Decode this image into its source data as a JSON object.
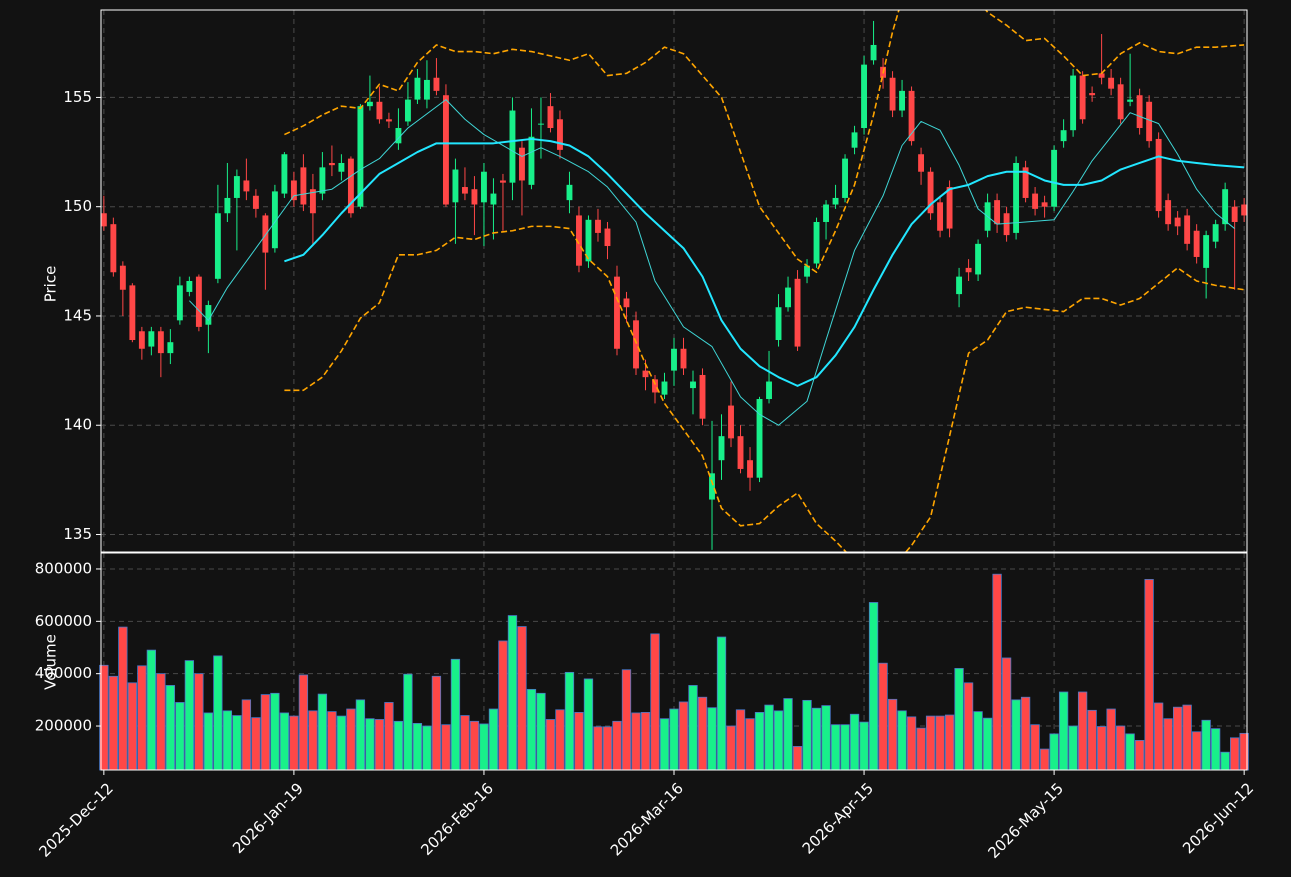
{
  "chart_data": {
    "type": "candlestick",
    "ylabel": "Price",
    "volume_label": "Volume",
    "up_color": "#18f08a",
    "down_color": "#ff4747",
    "volume_edge_color": "#4a78c8",
    "grid": true,
    "xlim": [
      -0.3,
      120.3
    ],
    "xticks": [
      {
        "value": 0,
        "label": "2025-Dec-12"
      },
      {
        "value": 20,
        "label": "2026-Jan-19"
      },
      {
        "value": 40,
        "label": "2026-Feb-16"
      },
      {
        "value": 60,
        "label": "2026-Mar-16"
      },
      {
        "value": 80,
        "label": "2026-Apr-15"
      },
      {
        "value": 100,
        "label": "2026-May-15"
      },
      {
        "value": 120,
        "label": "2026-Jun-12"
      }
    ],
    "ylim": [
      134.2,
      159.0
    ],
    "yticks": [
      135,
      140,
      145,
      150,
      155
    ],
    "volume_ylim": [
      32000,
      861000
    ],
    "volume_yticks": [
      200000,
      400000,
      600000,
      800000
    ],
    "open": [
      149.7,
      149.2,
      147.3,
      146.4,
      144.3,
      143.6,
      144.3,
      143.3,
      144.8,
      146.1,
      146.8,
      144.6,
      146.7,
      149.7,
      150.4,
      151.2,
      150.5,
      149.6,
      148.1,
      150.6,
      151.2,
      151.8,
      150.8,
      150.6,
      152.0,
      151.6,
      152.2,
      150.0,
      154.6,
      154.8,
      154.0,
      152.9,
      153.9,
      154.9,
      154.9,
      155.9,
      155.1,
      150.2,
      150.9,
      150.8,
      150.2,
      150.1,
      151.2,
      151.1,
      152.7,
      151.0,
      153.8,
      154.6,
      154.0,
      150.3,
      149.6,
      147.5,
      149.4,
      149.0,
      146.8,
      145.8,
      144.8,
      142.5,
      142.1,
      141.4,
      142.5,
      143.5,
      141.7,
      142.3,
      136.6,
      138.4,
      140.9,
      139.5,
      138.4,
      137.6,
      141.2,
      143.9,
      145.4,
      146.7,
      146.8,
      147.4,
      149.3,
      150.1,
      150.4,
      152.7,
      153.6,
      156.7,
      156.4,
      155.9,
      154.4,
      155.3,
      152.4,
      151.6,
      150.2,
      150.9,
      146.0,
      147.2,
      146.9,
      148.9,
      150.3,
      149.7,
      148.8,
      151.8,
      150.6,
      150.2,
      150.0,
      153.0,
      153.5,
      156.0,
      155.2,
      156.1,
      155.9,
      155.6,
      154.8,
      155.1,
      154.8,
      153.1,
      150.3,
      149.5,
      149.6,
      148.9,
      147.2,
      148.4,
      149.2,
      150.0,
      150.1
    ],
    "high": [
      150.5,
      149.5,
      147.5,
      146.5,
      144.5,
      144.5,
      144.5,
      144.4,
      146.8,
      146.8,
      146.9,
      145.7,
      151.0,
      152.0,
      151.7,
      152.2,
      150.8,
      149.7,
      151.0,
      152.5,
      151.6,
      152.4,
      151.5,
      152.5,
      152.8,
      152.4,
      152.3,
      154.7,
      156.0,
      155.5,
      154.3,
      154.5,
      155.7,
      156.3,
      156.7,
      156.8,
      155.6,
      152.2,
      151.8,
      151.4,
      152.0,
      151.3,
      151.5,
      155.0,
      153.0,
      154.5,
      155.0,
      155.2,
      154.4,
      151.6,
      150.0,
      149.6,
      149.9,
      149.3,
      147.3,
      146.1,
      145.2,
      143.0,
      142.3,
      142.4,
      144.0,
      144.0,
      142.5,
      142.6,
      140.2,
      140.5,
      142.0,
      140.0,
      139.0,
      141.3,
      143.4,
      146.0,
      146.8,
      147.1,
      147.6,
      149.5,
      150.3,
      151.0,
      152.4,
      153.7,
      156.9,
      158.5,
      156.8,
      156.2,
      155.8,
      155.5,
      152.7,
      151.8,
      150.5,
      151.2,
      147.2,
      147.6,
      148.5,
      150.6,
      150.6,
      150.0,
      152.3,
      152.1,
      150.9,
      150.5,
      152.8,
      154.0,
      156.3,
      156.2,
      155.5,
      157.9,
      156.3,
      155.9,
      157.0,
      155.4,
      155.1,
      153.4,
      150.6,
      149.8,
      149.9,
      149.2,
      148.9,
      149.4,
      151.1,
      150.3,
      150.4
    ],
    "low": [
      148.9,
      146.8,
      145.0,
      143.8,
      143.0,
      143.2,
      142.2,
      142.8,
      144.6,
      145.9,
      144.3,
      143.3,
      146.5,
      149.3,
      148.0,
      150.3,
      149.5,
      146.2,
      147.9,
      150.4,
      150.0,
      149.8,
      148.2,
      150.3,
      151.4,
      151.2,
      149.5,
      149.9,
      154.4,
      153.8,
      153.6,
      152.6,
      153.7,
      154.7,
      154.5,
      155.1,
      150.0,
      148.3,
      150.3,
      148.7,
      148.2,
      148.5,
      148.9,
      150.3,
      149.6,
      150.8,
      152.2,
      153.4,
      152.2,
      149.7,
      147.0,
      147.2,
      148.4,
      147.6,
      143.2,
      144.7,
      142.3,
      141.6,
      141.0,
      141.2,
      141.8,
      142.3,
      140.5,
      140.0,
      134.3,
      137.5,
      139.0,
      137.8,
      137.0,
      137.4,
      141.0,
      143.6,
      145.2,
      143.4,
      146.5,
      147.2,
      148.5,
      149.9,
      150.2,
      152.4,
      153.3,
      156.5,
      155.4,
      154.1,
      154.1,
      152.8,
      151.0,
      149.4,
      148.6,
      148.6,
      145.4,
      146.6,
      146.6,
      148.6,
      148.8,
      148.4,
      148.5,
      150.2,
      149.6,
      149.5,
      149.8,
      152.7,
      153.2,
      153.8,
      154.8,
      155.6,
      155.1,
      153.8,
      154.6,
      153.3,
      152.7,
      149.5,
      148.9,
      148.7,
      148.0,
      147.4,
      145.8,
      148.1,
      148.9,
      146.2,
      149.3
    ],
    "close": [
      149.1,
      147.0,
      146.2,
      143.9,
      143.5,
      144.3,
      143.3,
      143.8,
      146.4,
      146.6,
      144.5,
      145.5,
      149.7,
      150.4,
      151.4,
      150.7,
      149.9,
      147.9,
      150.7,
      152.4,
      150.3,
      150.1,
      149.7,
      151.8,
      151.9,
      152.0,
      149.7,
      154.6,
      154.8,
      154.0,
      153.9,
      153.6,
      154.9,
      155.9,
      155.8,
      155.3,
      150.1,
      151.7,
      150.6,
      150.1,
      151.6,
      150.6,
      151.1,
      154.4,
      151.2,
      153.2,
      153.8,
      153.6,
      152.6,
      151.0,
      147.3,
      149.4,
      148.8,
      148.2,
      143.5,
      145.4,
      142.6,
      142.2,
      141.5,
      142.0,
      143.5,
      142.6,
      142.0,
      140.3,
      137.8,
      139.5,
      139.4,
      138.0,
      137.6,
      141.2,
      142.0,
      145.4,
      146.3,
      143.6,
      147.3,
      149.3,
      150.1,
      150.4,
      152.2,
      153.4,
      156.5,
      157.4,
      155.9,
      154.4,
      155.3,
      153.0,
      151.6,
      149.7,
      148.9,
      149.0,
      146.8,
      147.0,
      148.3,
      150.2,
      149.2,
      148.7,
      152.0,
      150.4,
      149.9,
      150.0,
      152.6,
      153.5,
      156.0,
      154.0,
      155.1,
      155.9,
      155.4,
      154.0,
      154.9,
      153.6,
      153.0,
      149.8,
      149.2,
      149.1,
      148.3,
      147.7,
      148.7,
      149.2,
      150.8,
      149.3,
      149.6
    ],
    "volume": [
      432000,
      390000,
      578000,
      365000,
      430000,
      490000,
      400000,
      355000,
      290000,
      450000,
      400000,
      250000,
      468000,
      258000,
      240000,
      300000,
      232000,
      320000,
      325000,
      250000,
      238000,
      395000,
      258000,
      322000,
      255000,
      238000,
      265000,
      300000,
      228000,
      225000,
      290000,
      218000,
      398000,
      210000,
      200000,
      390000,
      205000,
      455000,
      240000,
      218000,
      208000,
      265000,
      525000,
      622000,
      580000,
      340000,
      325000,
      225000,
      262000,
      405000,
      252000,
      380000,
      197000,
      197000,
      218000,
      415000,
      250000,
      252000,
      552000,
      228000,
      265000,
      292000,
      355000,
      310000,
      270000,
      540000,
      200000,
      262000,
      228000,
      252000,
      280000,
      258000,
      305000,
      122000,
      298000,
      268000,
      278000,
      205000,
      205000,
      245000,
      215000,
      672000,
      440000,
      302000,
      258000,
      235000,
      192000,
      238000,
      238000,
      242000,
      420000,
      365000,
      255000,
      230000,
      780000,
      460000,
      300000,
      310000,
      205000,
      112000,
      170000,
      330000,
      200000,
      330000,
      260000,
      198000,
      265000,
      200000,
      170000,
      145000,
      760000,
      288000,
      228000,
      272000,
      280000,
      178000,
      222000,
      190000,
      100000,
      155000,
      172000
    ],
    "overlays": [
      {
        "color": "#3fd6d6",
        "width": 1,
        "dashed": false,
        "x": [
          9,
          11,
          13,
          16,
          20,
          24,
          27,
          29,
          32,
          36,
          38,
          40,
          44,
          46,
          48,
          51,
          53,
          56,
          58,
          61,
          64,
          67,
          69,
          71,
          74,
          76,
          79,
          82,
          84,
          86,
          88,
          90,
          92,
          94,
          97,
          100,
          102,
          104,
          106,
          108,
          111,
          113,
          115,
          117,
          119
        ],
        "values": [
          145.7,
          144.8,
          146.3,
          148.1,
          150.5,
          150.8,
          151.7,
          152.2,
          153.6,
          154.9,
          154.0,
          153.3,
          152.3,
          152.7,
          152.3,
          151.6,
          150.9,
          149.3,
          146.6,
          144.5,
          143.6,
          141.3,
          140.5,
          140.0,
          141.1,
          143.9,
          148.0,
          150.5,
          152.8,
          153.9,
          153.5,
          151.9,
          149.9,
          149.2,
          149.3,
          149.4,
          150.7,
          152.1,
          153.2,
          154.3,
          153.8,
          152.4,
          150.8,
          149.7,
          149.0
        ]
      },
      {
        "color": "#22e6ff",
        "width": 2,
        "dashed": false,
        "x": [
          19,
          21,
          23,
          25,
          27,
          29,
          31,
          33,
          35,
          37,
          39,
          41,
          43,
          45,
          47,
          49,
          51,
          53,
          55,
          57,
          59,
          61,
          63,
          65,
          67,
          69,
          71,
          73,
          75,
          77,
          79,
          81,
          83,
          85,
          87,
          89,
          91,
          93,
          95,
          97,
          99,
          101,
          103,
          105,
          107,
          109,
          111,
          113,
          115,
          117,
          120
        ],
        "values": [
          147.5,
          147.8,
          148.7,
          149.7,
          150.6,
          151.5,
          152.0,
          152.5,
          152.9,
          152.9,
          152.9,
          152.9,
          153.0,
          153.1,
          153.0,
          152.8,
          152.3,
          151.5,
          150.6,
          149.7,
          148.9,
          148.1,
          146.8,
          144.8,
          143.5,
          142.7,
          142.2,
          141.8,
          142.2,
          143.2,
          144.5,
          146.2,
          147.8,
          149.2,
          150.1,
          150.8,
          151.0,
          151.4,
          151.6,
          151.6,
          151.2,
          151.0,
          151.0,
          151.2,
          151.7,
          152.0,
          152.3,
          152.1,
          152.0,
          151.9,
          151.8
        ]
      },
      {
        "color": "#ffa500",
        "width": 1.6,
        "dashed": true,
        "x": [
          19,
          21,
          23,
          25,
          27,
          29,
          31,
          33,
          35,
          37,
          39,
          41,
          43,
          45,
          47,
          49,
          51,
          53,
          55,
          57,
          59,
          61,
          63,
          65,
          67,
          69,
          71,
          73,
          75,
          77,
          79,
          81,
          83,
          85,
          87,
          89,
          91,
          93,
          95,
          97,
          99,
          101,
          103,
          105,
          107,
          109,
          111,
          113,
          115,
          117,
          120
        ],
        "values": [
          153.3,
          153.7,
          154.2,
          154.6,
          154.5,
          155.6,
          155.3,
          156.6,
          157.4,
          157.1,
          157.1,
          157.0,
          157.2,
          157.1,
          156.9,
          156.7,
          157.0,
          156.0,
          156.1,
          156.6,
          157.3,
          157.0,
          156.0,
          155.0,
          152.5,
          150.0,
          148.8,
          147.6,
          147.0,
          148.9,
          151.0,
          154.2,
          158.0,
          161.0,
          162.5,
          162.0,
          160.0,
          158.9,
          158.3,
          157.6,
          157.7,
          156.9,
          156.0,
          156.1,
          157.0,
          157.5,
          157.1,
          157.0,
          157.3,
          157.3,
          157.4
        ]
      },
      {
        "color": "#ffa500",
        "width": 1.6,
        "dashed": true,
        "x": [
          19,
          21,
          23,
          25,
          27,
          29,
          31,
          33,
          35,
          37,
          39,
          41,
          43,
          45,
          47,
          49,
          51,
          53,
          55,
          57,
          59,
          61,
          63,
          65,
          67,
          69,
          71,
          73,
          75,
          77,
          79,
          81,
          83,
          85,
          87,
          89,
          91,
          93,
          95,
          97,
          99,
          101,
          103,
          105,
          107,
          109,
          111,
          113,
          115,
          117,
          120
        ],
        "values": [
          141.6,
          141.6,
          142.2,
          143.4,
          144.9,
          145.6,
          147.8,
          147.8,
          148.0,
          148.6,
          148.5,
          148.8,
          148.9,
          149.1,
          149.1,
          149.0,
          147.6,
          146.8,
          144.8,
          142.8,
          141.0,
          139.8,
          138.6,
          136.2,
          135.4,
          135.5,
          136.3,
          136.9,
          135.5,
          134.7,
          133.8,
          132.5,
          133.5,
          134.5,
          135.8,
          139.5,
          143.3,
          143.9,
          145.2,
          145.4,
          145.3,
          145.2,
          145.8,
          145.8,
          145.5,
          145.8,
          146.5,
          147.2,
          146.6,
          146.4,
          146.2
        ]
      }
    ]
  }
}
